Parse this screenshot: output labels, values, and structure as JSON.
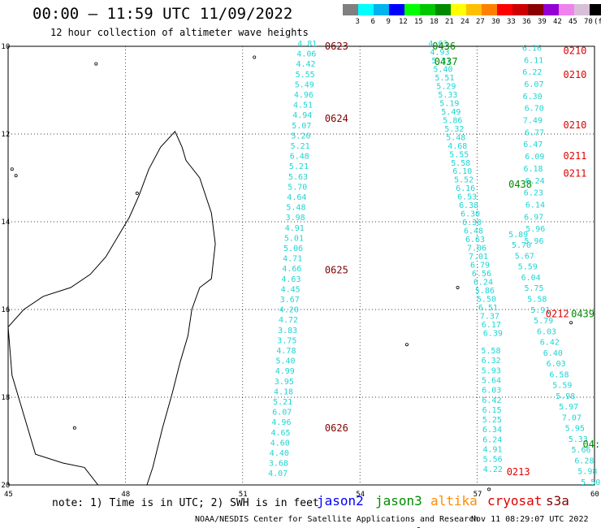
{
  "header": {
    "title": "00:00 – 11:59 UTC 11/09/2022",
    "subtitle": "12 hour collection of altimeter wave heights"
  },
  "colorbar": {
    "colors": [
      "#808080",
      "#00ffff",
      "#00b2ee",
      "#0000ff",
      "#00ff00",
      "#00c800",
      "#008b00",
      "#ffff00",
      "#ffc000",
      "#ff8000",
      "#ff0000",
      "#cd0000",
      "#8b0000",
      "#9400d3",
      "#ee82ee",
      "#d8bfd8",
      "#000000"
    ],
    "labels": [
      "3",
      "6",
      "9",
      "12",
      "15",
      "18",
      "21",
      "24",
      "27",
      "30",
      "33",
      "36",
      "39",
      "42",
      "45",
      "70",
      "(ft)"
    ]
  },
  "map": {
    "lat_labels": [
      "-10",
      "-12",
      "-14",
      "-16",
      "-18",
      "-20"
    ],
    "lon_labels": [
      "45",
      "48",
      "51",
      "54",
      "57",
      "60"
    ],
    "west_track": {
      "values": [
        "4.81",
        "4.06",
        "4.42",
        "5.55",
        "5.49",
        "4.96",
        "4.51",
        "4.94",
        "5.07",
        "5.20",
        "5.21",
        "6.48",
        "5.21",
        "5.63",
        "5.70",
        "4.64",
        "5.48",
        "3.98",
        "4.91",
        "5.01",
        "5.06",
        "4.71",
        "4.66",
        "4.63",
        "4.45",
        "3.67",
        "4.20",
        "4.72",
        "3.83",
        "3.75",
        "4.78",
        "5.40",
        "4.99",
        "3.95",
        "4.18",
        "5.21",
        "6.07",
        "4.96",
        "4.65",
        "4.60",
        "4.40",
        "3.68",
        "4.07"
      ],
      "times": [
        {
          "label": "0623",
          "lat": -10.0
        },
        {
          "label": "0624",
          "lat": -11.65
        },
        {
          "label": "0625",
          "lat": -15.1
        },
        {
          "label": "0626",
          "lat": -18.7
        }
      ]
    },
    "east_track_a": {
      "values": [
        "4.63",
        "4.93",
        "5.31",
        "5.40",
        "5.51",
        "5.29",
        "5.33",
        "5.19",
        "5.49",
        "5.86",
        "5.32",
        "5.48",
        "4.68",
        "5.55",
        "5.58",
        "6.10",
        "5.52",
        "6.16",
        "6.53",
        "6.38",
        "6.30",
        "6.30",
        "6.48",
        "6.63",
        "7.06",
        "7.01",
        "6.79",
        "6.56",
        "6.24",
        "5.86",
        "5.50",
        "6.51",
        "7.37",
        "6.17",
        "6.39"
      ],
      "times": [
        {
          "label": "0436",
          "lat": -10.0
        },
        {
          "label": "0437",
          "lat": -10.35
        },
        {
          "label": "0438",
          "lat": -13.15
        },
        {
          "label": "0439",
          "lat": -16.1
        }
      ]
    },
    "east_track_b": {
      "values": [
        "5.89",
        "5.70",
        "5.67",
        "5.59",
        "6.04",
        "5.75",
        "5.58",
        "5.91",
        "5.79",
        "6.03",
        "6.42",
        "6.40",
        "6.03",
        "6.58",
        "5.59",
        "5.98",
        "5.97",
        "7.07",
        "5.95",
        "5.33",
        "5.66",
        "6.28",
        "5.98",
        "5.50"
      ]
    },
    "cryosat_track": {
      "values": [
        "6.16",
        "6.11",
        "6.22",
        "6.07",
        "6.30",
        "6.70",
        "7.49",
        "6.77",
        "6.47",
        "6.09",
        "6.18",
        "6.24",
        "6.23",
        "6.14",
        "6.97",
        "5.96",
        "5.96"
      ],
      "times": [
        {
          "label": "0210",
          "lat": -10.1
        },
        {
          "label": "0210",
          "lat": -10.65
        },
        {
          "label": "0210",
          "lat": -11.8
        },
        {
          "label": "0211",
          "lat": -12.5
        },
        {
          "label": "0211",
          "lat": -12.9
        },
        {
          "label": "0212",
          "lat": -16.1
        },
        {
          "label": "0213",
          "lat": -19.7
        }
      ]
    },
    "south_track": {
      "values": [
        "5.58",
        "6.32",
        "5.93",
        "5.64",
        "6.03",
        "6.42",
        "6.15",
        "5.25",
        "6.34",
        "6.24",
        "4.91",
        "5.56",
        "4.22"
      ]
    },
    "edge_time": "04:",
    "colors": {
      "track": "#1fd4d4",
      "jason2": "#0000ff",
      "jason3": "#008b00",
      "altika": "#ff8c00",
      "cryosat": "#e00000",
      "s3a": "#800000"
    }
  },
  "footer": {
    "note": "note: 1) Time is in UTC; 2) SWH is in feet",
    "satellites": [
      "jason2",
      "jason3",
      "altika",
      "cryosat",
      "s3a"
    ],
    "credit": "NOAA/NESDIS Center for Satellite Applications and Research",
    "timestamp": "Nov 11 08:29:07 UTC 2022"
  }
}
